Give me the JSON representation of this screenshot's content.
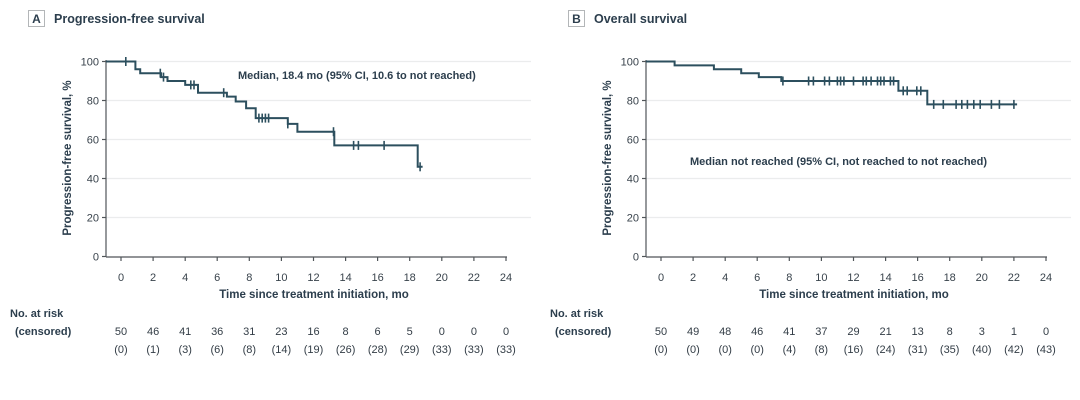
{
  "figure": {
    "background": "#ffffff",
    "accent_color": "#2c4f5e",
    "panels": [
      {
        "label": "A",
        "title": "Progression-free survival",
        "annotation": "Median, 18.4 mo (95% CI, 10.6 to not reached)",
        "ylabel": "Progression-free survival, %",
        "xlabel": "Time since treatment initiation, mo",
        "risk_header": "No. at risk",
        "risk_subheader": "(censored)"
      },
      {
        "label": "B",
        "title": "Overall survival",
        "annotation": "Median not reached (95% CI, not reached to not reached)",
        "ylabel": "Progression-free survival, %",
        "xlabel": "Time since treatment initiation, mo",
        "risk_header": "No. at risk",
        "risk_subheader": "(censored)"
      }
    ]
  },
  "chart_data": [
    {
      "type": "line",
      "subtype": "kaplan-meier-step",
      "panel": "A",
      "title": "Progression-free survival",
      "xlabel": "Time since treatment initiation, mo",
      "ylabel": "Progression-free survival, %",
      "annotation": "Median, 18.4 mo (95% CI, 10.6 to not reached)",
      "xlim": [
        0,
        24
      ],
      "ylim": [
        0,
        100
      ],
      "xticks": [
        0,
        2,
        4,
        6,
        8,
        10,
        12,
        14,
        16,
        18,
        20,
        22,
        24
      ],
      "yticks": [
        0,
        20,
        40,
        60,
        80,
        100
      ],
      "grid": "horizontal-light",
      "legend": "none",
      "line_color": "#2c4f5e",
      "series": [
        {
          "name": "Progression-free survival",
          "steps": [
            [
              0,
              100
            ],
            [
              0.9,
              96
            ],
            [
              1.2,
              94
            ],
            [
              2.5,
              92
            ],
            [
              2.9,
              90
            ],
            [
              4.0,
              88
            ],
            [
              4.8,
              84
            ],
            [
              6.6,
              82
            ],
            [
              7.15,
              79.5
            ],
            [
              7.8,
              76
            ],
            [
              8.4,
              71
            ],
            [
              10.4,
              68
            ],
            [
              11.0,
              64
            ],
            [
              13.3,
              57
            ],
            [
              18.5,
              46
            ]
          ],
          "end_x": 18.8,
          "censor_x": [
            0.3,
            2.45,
            2.65,
            4.35,
            4.55,
            6.4,
            8.6,
            8.8,
            9.0,
            9.2,
            10.4,
            13.25,
            14.5,
            14.8,
            16.4,
            18.65
          ]
        }
      ],
      "no_at_risk": [
        50,
        46,
        41,
        36,
        31,
        23,
        16,
        8,
        6,
        5,
        0,
        0,
        0
      ],
      "censored": [
        0,
        1,
        3,
        6,
        8,
        14,
        19,
        26,
        28,
        29,
        33,
        33,
        33
      ]
    },
    {
      "type": "line",
      "subtype": "kaplan-meier-step",
      "panel": "B",
      "title": "Overall survival",
      "xlabel": "Time since treatment initiation, mo",
      "ylabel": "Progression-free survival, %",
      "annotation": "Median not reached (95% CI, not reached to not reached)",
      "xlim": [
        0,
        24
      ],
      "ylim": [
        0,
        100
      ],
      "xticks": [
        0,
        2,
        4,
        6,
        8,
        10,
        12,
        14,
        16,
        18,
        20,
        22,
        24
      ],
      "yticks": [
        0,
        20,
        40,
        60,
        80,
        100
      ],
      "grid": "horizontal-light",
      "legend": "none",
      "line_color": "#2c4f5e",
      "series": [
        {
          "name": "Overall survival",
          "steps": [
            [
              0,
              100
            ],
            [
              0.85,
              98
            ],
            [
              3.3,
              96
            ],
            [
              5.0,
              94
            ],
            [
              6.1,
              92
            ],
            [
              7.5,
              90
            ],
            [
              14.8,
              85
            ],
            [
              16.6,
              78
            ]
          ],
          "end_x": 22.2,
          "censor_x": [
            7.6,
            9.2,
            9.5,
            10.2,
            10.5,
            11.0,
            11.2,
            11.4,
            12.0,
            12.6,
            12.8,
            13.1,
            13.5,
            13.7,
            13.9,
            14.3,
            14.5,
            15.1,
            15.35,
            15.95,
            16.2,
            17.0,
            17.6,
            18.4,
            18.75,
            19.1,
            19.5,
            19.9,
            20.6,
            21.1,
            22.0
          ]
        }
      ],
      "no_at_risk": [
        50,
        49,
        48,
        46,
        41,
        37,
        29,
        21,
        13,
        8,
        3,
        1,
        0
      ],
      "censored": [
        0,
        0,
        0,
        0,
        4,
        8,
        16,
        24,
        31,
        35,
        40,
        42,
        43
      ]
    }
  ]
}
